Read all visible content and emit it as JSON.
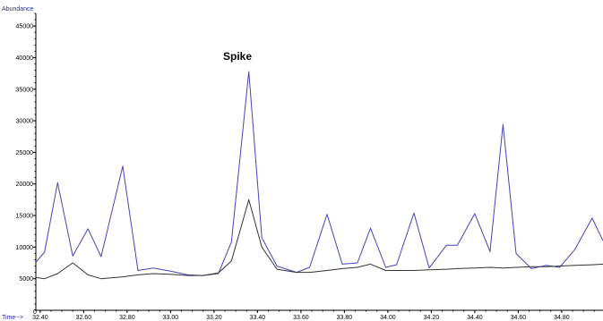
{
  "chart_data": {
    "type": "line",
    "ylabel": "Abundance",
    "xlabel": "Time-->",
    "annotation": {
      "text": "Spike",
      "x": 33.38,
      "y": 40000
    },
    "xlim": [
      32.38,
      34.99
    ],
    "ylim": [
      0,
      47000
    ],
    "x_ticks": [
      "32.40",
      "32.60",
      "32.80",
      "33.00",
      "33.20",
      "33.40",
      "33.60",
      "33.80",
      "34.00",
      "34.20",
      "34.40",
      "34.60",
      "34.80"
    ],
    "y_ticks": [
      "5000",
      "10000",
      "15000",
      "20000",
      "25000",
      "30000",
      "35000",
      "40000",
      "45000"
    ],
    "y_zero_label": "0",
    "grid": false,
    "series": [
      {
        "color": "#4444b8",
        "x": [
          32.38,
          32.42,
          32.48,
          32.55,
          32.62,
          32.68,
          32.78,
          32.85,
          32.92,
          33.0,
          33.08,
          33.15,
          33.22,
          33.28,
          33.36,
          33.42,
          33.49,
          33.58,
          33.64,
          33.72,
          33.79,
          33.86,
          33.92,
          33.99,
          34.04,
          34.12,
          34.19,
          34.27,
          34.32,
          34.4,
          34.47,
          34.53,
          34.59,
          34.66,
          34.73,
          34.79,
          34.86,
          34.94,
          34.99
        ],
        "y": [
          7600,
          9200,
          20200,
          8600,
          12900,
          8500,
          22800,
          6300,
          6700,
          6200,
          5600,
          5500,
          5800,
          10800,
          37800,
          11500,
          7000,
          6000,
          6800,
          15200,
          7300,
          7500,
          13000,
          6800,
          7200,
          15400,
          6700,
          10300,
          10300,
          15300,
          9300,
          29400,
          9000,
          6600,
          7100,
          6800,
          9600,
          14600,
          11000
        ]
      },
      {
        "color": "#333333",
        "x": [
          32.38,
          32.42,
          32.48,
          32.55,
          32.62,
          32.68,
          32.78,
          32.85,
          32.92,
          33.0,
          33.08,
          33.15,
          33.22,
          33.28,
          33.36,
          33.42,
          33.49,
          33.58,
          33.64,
          33.72,
          33.79,
          33.86,
          33.92,
          33.99,
          34.04,
          34.12,
          34.19,
          34.27,
          34.32,
          34.4,
          34.47,
          34.53,
          34.59,
          34.66,
          34.73,
          34.79,
          34.86,
          34.94,
          34.99
        ],
        "y": [
          5200,
          5000,
          5800,
          7500,
          5600,
          5000,
          5300,
          5600,
          5800,
          5700,
          5500,
          5500,
          5900,
          7800,
          17500,
          10000,
          6500,
          6000,
          6000,
          6300,
          6600,
          6800,
          7300,
          6300,
          6300,
          6300,
          6400,
          6500,
          6600,
          6700,
          6800,
          6700,
          6800,
          6900,
          6900,
          7000,
          7100,
          7200,
          7300
        ]
      }
    ]
  }
}
